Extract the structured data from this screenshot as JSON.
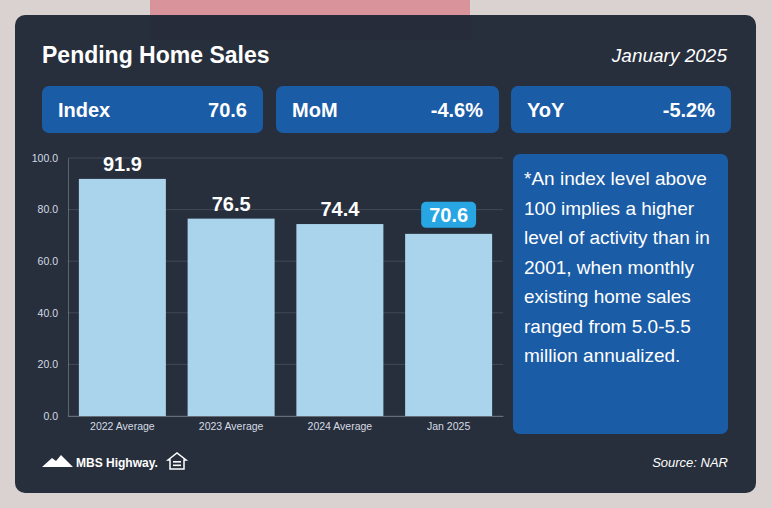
{
  "chart_data": {
    "type": "bar",
    "title": "Pending Home Sales",
    "subtitle": "January 2025",
    "categories": [
      "2022 Average",
      "2023 Average",
      "2024 Average",
      "Jan 2025"
    ],
    "values": [
      91.9,
      76.5,
      74.4,
      70.6
    ],
    "color": "#a9d4ec",
    "ylim": [
      0,
      100
    ],
    "yticks": [
      {
        "value": 0,
        "label": "0.0"
      },
      {
        "value": 20,
        "label": "20.0"
      },
      {
        "value": 40,
        "label": "40.0"
      },
      {
        "value": 60,
        "label": "60.0"
      },
      {
        "value": 80,
        "label": "80.0"
      },
      {
        "value": 100,
        "label": "100.0"
      }
    ],
    "grid": true,
    "data_labels": true,
    "annotations": [
      "*An index level above 100 implies a higher level of activity than in 2001, when monthly existing home sales ranged from 5.0-5.5 million annualized."
    ]
  },
  "stats": [
    {
      "label": "Index",
      "value": "70.6"
    },
    {
      "label": "MoM",
      "value": "-4.6%"
    },
    {
      "label": "YoY",
      "value": "-5.2%"
    }
  ],
  "footer": {
    "brand": "MBS Highway.",
    "source": "Source: NAR"
  }
}
